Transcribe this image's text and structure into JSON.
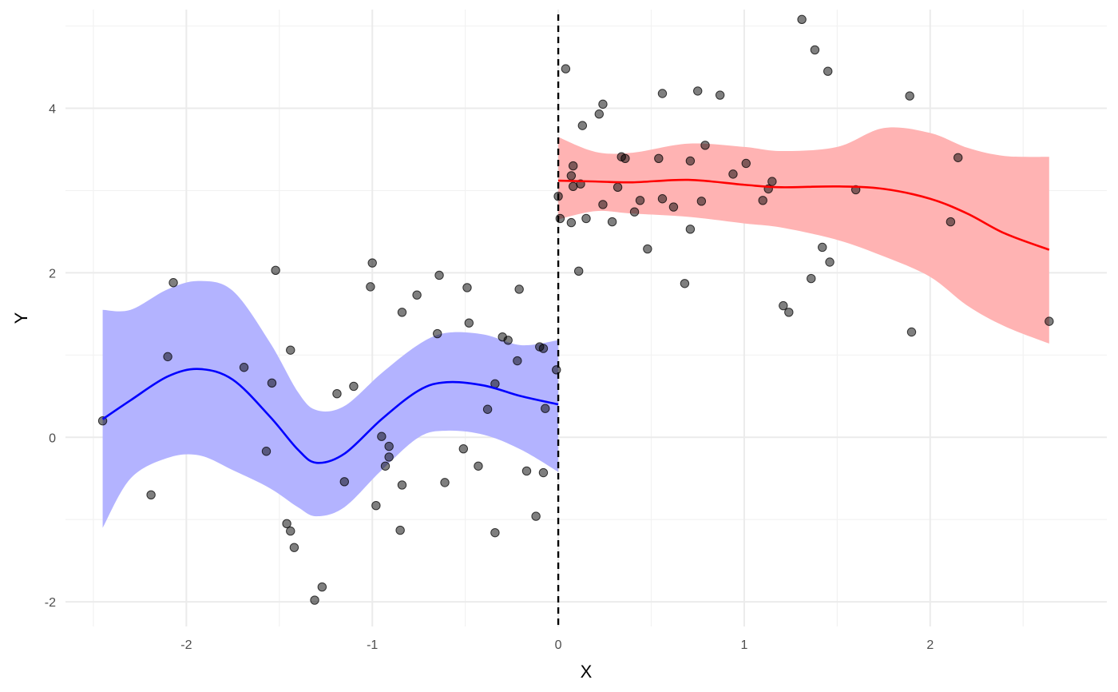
{
  "chart_data": {
    "type": "scatter",
    "title": "",
    "xlabel": "X",
    "ylabel": "Y",
    "xlim": [
      -2.65,
      2.95
    ],
    "ylim": [
      -2.3,
      5.2
    ],
    "x_ticks": [
      -2,
      -1,
      0,
      1,
      2
    ],
    "y_ticks": [
      -2,
      0,
      2,
      4
    ],
    "x_tick_labels": [
      "-2",
      "-1",
      "0",
      "1",
      "2"
    ],
    "y_tick_labels": [
      "-2",
      "0",
      "2",
      "4"
    ],
    "grid": true,
    "legend": "none",
    "cutoff_x": 0,
    "points": [
      {
        "x": -2.45,
        "y": 0.2
      },
      {
        "x": -2.19,
        "y": -0.7
      },
      {
        "x": -2.1,
        "y": 0.98
      },
      {
        "x": -2.07,
        "y": 1.88
      },
      {
        "x": -1.69,
        "y": 0.85
      },
      {
        "x": -1.57,
        "y": -0.17
      },
      {
        "x": -1.54,
        "y": 0.66
      },
      {
        "x": -1.52,
        "y": 2.03
      },
      {
        "x": -1.46,
        "y": -1.05
      },
      {
        "x": -1.44,
        "y": -1.14
      },
      {
        "x": -1.44,
        "y": 1.06
      },
      {
        "x": -1.42,
        "y": -1.34
      },
      {
        "x": -1.31,
        "y": -1.98
      },
      {
        "x": -1.27,
        "y": -1.82
      },
      {
        "x": -1.19,
        "y": 0.53
      },
      {
        "x": -1.15,
        "y": -0.54
      },
      {
        "x": -1.1,
        "y": 0.62
      },
      {
        "x": -1.01,
        "y": 1.83
      },
      {
        "x": -1.0,
        "y": 2.12
      },
      {
        "x": -0.98,
        "y": -0.83
      },
      {
        "x": -0.95,
        "y": 0.01
      },
      {
        "x": -0.93,
        "y": -0.35
      },
      {
        "x": -0.91,
        "y": -0.11
      },
      {
        "x": -0.91,
        "y": -0.24
      },
      {
        "x": -0.85,
        "y": -1.13
      },
      {
        "x": -0.84,
        "y": -0.58
      },
      {
        "x": -0.84,
        "y": 1.52
      },
      {
        "x": -0.76,
        "y": 1.73
      },
      {
        "x": -0.65,
        "y": 1.26
      },
      {
        "x": -0.64,
        "y": 1.97
      },
      {
        "x": -0.61,
        "y": -0.55
      },
      {
        "x": -0.51,
        "y": -0.14
      },
      {
        "x": -0.49,
        "y": 1.82
      },
      {
        "x": -0.48,
        "y": 1.39
      },
      {
        "x": -0.43,
        "y": -0.35
      },
      {
        "x": -0.38,
        "y": 0.34
      },
      {
        "x": -0.34,
        "y": 0.65
      },
      {
        "x": -0.34,
        "y": -1.16
      },
      {
        "x": -0.3,
        "y": 1.22
      },
      {
        "x": -0.27,
        "y": 1.18
      },
      {
        "x": -0.22,
        "y": 0.93
      },
      {
        "x": -0.21,
        "y": 1.8
      },
      {
        "x": -0.17,
        "y": -0.41
      },
      {
        "x": -0.12,
        "y": -0.96
      },
      {
        "x": -0.1,
        "y": 1.1
      },
      {
        "x": -0.08,
        "y": 1.08
      },
      {
        "x": -0.08,
        "y": -0.43
      },
      {
        "x": -0.07,
        "y": 0.35
      },
      {
        "x": -0.01,
        "y": 0.82
      },
      {
        "x": 0.0,
        "y": 2.93
      },
      {
        "x": 0.01,
        "y": 2.66
      },
      {
        "x": 0.04,
        "y": 4.48
      },
      {
        "x": 0.07,
        "y": 3.18
      },
      {
        "x": 0.07,
        "y": 2.61
      },
      {
        "x": 0.08,
        "y": 3.3
      },
      {
        "x": 0.08,
        "y": 3.05
      },
      {
        "x": 0.11,
        "y": 2.02
      },
      {
        "x": 0.12,
        "y": 3.08
      },
      {
        "x": 0.13,
        "y": 3.79
      },
      {
        "x": 0.15,
        "y": 2.66
      },
      {
        "x": 0.22,
        "y": 3.93
      },
      {
        "x": 0.24,
        "y": 4.05
      },
      {
        "x": 0.24,
        "y": 2.83
      },
      {
        "x": 0.29,
        "y": 2.62
      },
      {
        "x": 0.32,
        "y": 3.04
      },
      {
        "x": 0.34,
        "y": 3.41
      },
      {
        "x": 0.36,
        "y": 3.39
      },
      {
        "x": 0.41,
        "y": 2.74
      },
      {
        "x": 0.44,
        "y": 2.88
      },
      {
        "x": 0.48,
        "y": 2.29
      },
      {
        "x": 0.54,
        "y": 3.39
      },
      {
        "x": 0.56,
        "y": 4.18
      },
      {
        "x": 0.56,
        "y": 2.9
      },
      {
        "x": 0.62,
        "y": 2.8
      },
      {
        "x": 0.68,
        "y": 1.87
      },
      {
        "x": 0.71,
        "y": 3.36
      },
      {
        "x": 0.71,
        "y": 2.53
      },
      {
        "x": 0.75,
        "y": 4.21
      },
      {
        "x": 0.77,
        "y": 2.87
      },
      {
        "x": 0.79,
        "y": 3.55
      },
      {
        "x": 0.87,
        "y": 4.16
      },
      {
        "x": 0.94,
        "y": 3.2
      },
      {
        "x": 1.01,
        "y": 3.33
      },
      {
        "x": 1.1,
        "y": 2.88
      },
      {
        "x": 1.13,
        "y": 3.02
      },
      {
        "x": 1.15,
        "y": 3.11
      },
      {
        "x": 1.21,
        "y": 1.6
      },
      {
        "x": 1.24,
        "y": 1.52
      },
      {
        "x": 1.31,
        "y": 5.08
      },
      {
        "x": 1.36,
        "y": 1.93
      },
      {
        "x": 1.38,
        "y": 4.71
      },
      {
        "x": 1.42,
        "y": 2.31
      },
      {
        "x": 1.45,
        "y": 4.45
      },
      {
        "x": 1.46,
        "y": 2.13
      },
      {
        "x": 1.6,
        "y": 3.01
      },
      {
        "x": 1.89,
        "y": 4.15
      },
      {
        "x": 1.9,
        "y": 1.28
      },
      {
        "x": 2.11,
        "y": 2.62
      },
      {
        "x": 2.15,
        "y": 3.4
      },
      {
        "x": 2.64,
        "y": 1.41
      }
    ],
    "fits": [
      {
        "side": "left",
        "line_color": "#0000ff",
        "band_color": "#b3b3ff",
        "x": [
          -2.45,
          -2.3,
          -2.1,
          -1.93,
          -1.75,
          -1.55,
          -1.4,
          -1.3,
          -1.15,
          -0.95,
          -0.75,
          -0.6,
          -0.4,
          -0.2,
          0.0
        ],
        "y": [
          0.22,
          0.45,
          0.74,
          0.83,
          0.7,
          0.25,
          -0.15,
          -0.31,
          -0.2,
          0.22,
          0.57,
          0.67,
          0.63,
          0.5,
          0.4
        ],
        "lower": [
          -1.1,
          -0.5,
          -0.25,
          -0.22,
          -0.4,
          -0.62,
          -0.85,
          -0.96,
          -0.85,
          -0.4,
          0.0,
          0.08,
          0.03,
          -0.15,
          -0.42
        ],
        "upper": [
          1.55,
          1.55,
          1.8,
          1.9,
          1.78,
          1.15,
          0.55,
          0.33,
          0.38,
          0.78,
          1.13,
          1.27,
          1.25,
          1.12,
          1.18
        ]
      },
      {
        "side": "right",
        "line_color": "#ff0000",
        "band_color": "#ffb3b3",
        "x": [
          0.0,
          0.2,
          0.4,
          0.7,
          1.0,
          1.2,
          1.5,
          1.75,
          2.0,
          2.2,
          2.4,
          2.64
        ],
        "y": [
          3.12,
          3.11,
          3.1,
          3.13,
          3.07,
          3.04,
          3.05,
          3.02,
          2.9,
          2.72,
          2.48,
          2.28
        ],
        "lower": [
          2.65,
          2.75,
          2.72,
          2.68,
          2.6,
          2.55,
          2.4,
          2.2,
          1.95,
          1.6,
          1.35,
          1.14
        ],
        "upper": [
          3.65,
          3.47,
          3.46,
          3.57,
          3.53,
          3.48,
          3.53,
          3.76,
          3.7,
          3.52,
          3.42,
          3.41
        ]
      }
    ]
  }
}
